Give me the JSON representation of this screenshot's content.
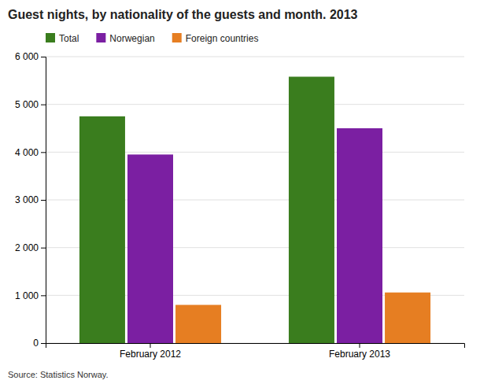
{
  "chart_data": {
    "type": "bar",
    "title": "Guest nights, by nationality of the guests and month. 2013",
    "categories": [
      "February 2012",
      "February 2013"
    ],
    "series": [
      {
        "name": "Total",
        "color": "#3a7d1e",
        "values": [
          4750,
          5580
        ]
      },
      {
        "name": "Norwegian",
        "color": "#7b1fa2",
        "values": [
          3950,
          4500
        ]
      },
      {
        "name": "Foreign countries",
        "color": "#e67e22",
        "values": [
          800,
          1060
        ]
      }
    ],
    "ylim": [
      0,
      6000
    ],
    "yticks": [
      0,
      {
        "value": 1000,
        "label": "1 000"
      },
      {
        "value": 2000,
        "label": "2 000"
      },
      {
        "value": 3000,
        "label": "3 000"
      },
      {
        "value": 4000,
        "label": "4 000"
      },
      {
        "value": 5000,
        "label": "5 000"
      },
      {
        "value": 6000,
        "label": "6 000"
      }
    ],
    "grid": true,
    "legend": "top",
    "annotations": [
      "Source: Statistics Norway."
    ]
  }
}
